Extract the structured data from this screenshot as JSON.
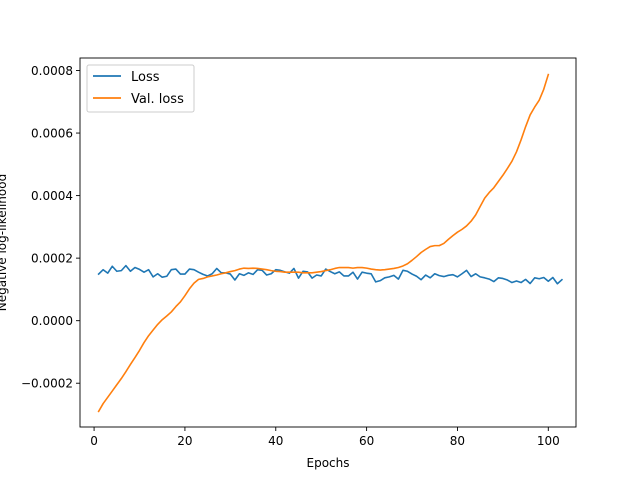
{
  "chart_data": {
    "type": "line",
    "title": "",
    "xlabel": "Epochs",
    "ylabel": "Negative log-likelihood",
    "xlim": [
      -3.1,
      106.1
    ],
    "ylim": [
      -0.00034,
      0.00084
    ],
    "xticks": [
      0,
      20,
      40,
      60,
      80,
      100
    ],
    "yticks": [
      -0.0002,
      0.0,
      0.0002,
      0.0004,
      0.0006,
      0.0008
    ],
    "ytick_labels": [
      "−0.0002",
      "0.0000",
      "0.0002",
      "0.0004",
      "0.0006",
      "0.0008"
    ],
    "legend_position": "top-left",
    "grid": false,
    "series": [
      {
        "name": "Loss",
        "color": "#1f77b4",
        "x_start": 1,
        "values": [
          0.000149,
          0.000163,
          0.000152,
          0.000174,
          0.000158,
          0.00016,
          0.000176,
          0.000158,
          0.00017,
          0.000164,
          0.000155,
          0.000163,
          0.00014,
          0.00015,
          0.000139,
          0.000142,
          0.000163,
          0.000165,
          0.000149,
          0.000149,
          0.000165,
          0.000163,
          0.000155,
          0.000148,
          0.000143,
          0.00015,
          0.000167,
          0.000153,
          0.000153,
          0.000149,
          0.00013,
          0.00015,
          0.000145,
          0.000153,
          0.000148,
          0.000163,
          0.000161,
          0.000146,
          0.00015,
          0.000163,
          0.000161,
          0.000156,
          0.000152,
          0.000167,
          0.000136,
          0.000158,
          0.000156,
          0.000136,
          0.000146,
          0.000143,
          0.000165,
          0.000157,
          0.00015,
          0.000156,
          0.000143,
          0.000143,
          0.000155,
          0.000133,
          0.000155,
          0.000152,
          0.00015,
          0.000124,
          0.000128,
          0.000137,
          0.00014,
          0.000145,
          0.000133,
          0.000161,
          0.000158,
          0.000149,
          0.000142,
          0.000131,
          0.000146,
          0.000137,
          0.00015,
          0.000144,
          0.000141,
          0.000145,
          0.000147,
          0.00014,
          0.00015,
          0.000161,
          0.000141,
          0.00015,
          0.00014,
          0.000137,
          0.000133,
          0.000125,
          0.000137,
          0.000135,
          0.00013,
          0.000122,
          0.000127,
          0.000122,
          0.000132,
          0.000119,
          0.000137,
          0.000134,
          0.000138,
          0.000126,
          0.000138,
          0.000118,
          0.000131
        ]
      },
      {
        "name": "Val. loss",
        "color": "#ff7f0e",
        "x_start": 1,
        "values": [
          -0.00029,
          -0.000265,
          -0.000245,
          -0.000225,
          -0.000205,
          -0.000185,
          -0.000163,
          -0.00014,
          -0.000118,
          -9.5e-05,
          -7e-05,
          -4.8e-05,
          -3e-05,
          -1.2e-05,
          3e-06,
          1.5e-05,
          2.8e-05,
          4.5e-05,
          6e-05,
          8e-05,
          0.000102,
          0.00012,
          0.000132,
          0.000135,
          0.00014,
          0.000143,
          0.000146,
          0.00015,
          0.000153,
          0.000157,
          0.00016,
          0.000165,
          0.000168,
          0.000167,
          0.000168,
          0.000167,
          0.000165,
          0.000163,
          0.00016,
          0.000158,
          0.000157,
          0.000155,
          0.000155,
          0.000155,
          0.000155,
          0.000153,
          0.000153,
          0.000153,
          0.000155,
          0.000157,
          0.00016,
          0.000163,
          0.000167,
          0.00017,
          0.00017,
          0.00017,
          0.000168,
          0.00017,
          0.00017,
          0.000168,
          0.000165,
          0.000163,
          0.000162,
          0.000163,
          0.000165,
          0.000167,
          0.00017,
          0.000175,
          0.000182,
          0.000193,
          0.000205,
          0.000218,
          0.000228,
          0.000237,
          0.00024,
          0.00024,
          0.000247,
          0.00026,
          0.000272,
          0.000283,
          0.000292,
          0.000303,
          0.000318,
          0.000338,
          0.000365,
          0.000392,
          0.00041,
          0.000425,
          0.000445,
          0.000465,
          0.000487,
          0.00051,
          0.00054,
          0.000578,
          0.00062,
          0.000658,
          0.000683,
          0.000705,
          0.00074,
          0.000787
        ]
      }
    ]
  }
}
